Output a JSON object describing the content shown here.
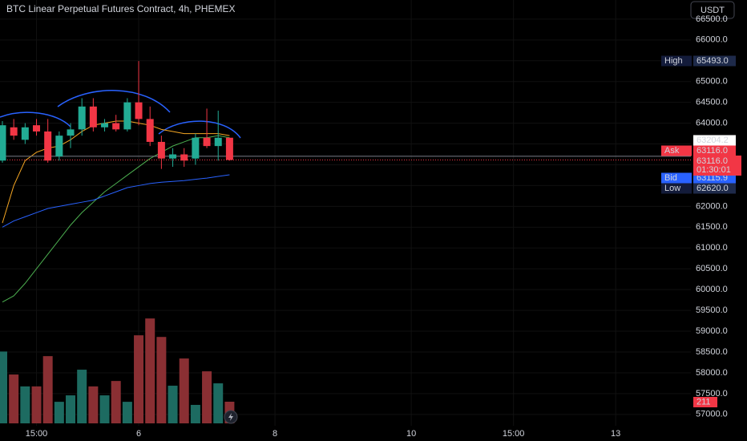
{
  "chart_data": {
    "type": "candlestick",
    "title": "BTC Linear Perpetual Futures Contract, 4h, PHEMEX",
    "currency_button": "USDT",
    "up_color": "#22ab94",
    "down_color": "#f23645",
    "open": [
      63100,
      63900,
      63600,
      63950,
      63800,
      63200,
      63700,
      63850,
      64400,
      63900,
      64000,
      63850,
      64500,
      64100,
      63550,
      63150,
      63250,
      63150,
      63650,
      63450,
      63650
    ],
    "high": [
      64050,
      64100,
      64000,
      64100,
      64100,
      63800,
      64000,
      64600,
      64600,
      64100,
      64200,
      64600,
      65493,
      64400,
      63700,
      63400,
      63400,
      63750,
      64350,
      64300,
      63650
    ],
    "low": [
      63050,
      63600,
      63500,
      63700,
      63050,
      63100,
      63400,
      63700,
      63800,
      63800,
      63800,
      63800,
      63950,
      63450,
      62900,
      62950,
      62950,
      63000,
      63400,
      63100,
      63100
    ],
    "close": [
      63950,
      63700,
      63900,
      63800,
      63100,
      63700,
      63850,
      64400,
      63900,
      64000,
      63850,
      64500,
      64100,
      63550,
      63150,
      63250,
      63100,
      63650,
      63450,
      63650,
      63116
    ],
    "volume": [
      700,
      476,
      360,
      360,
      655,
      210,
      273,
      523,
      360,
      273,
      413,
      210,
      858,
      1022,
      842,
      367,
      632,
      180,
      507,
      390,
      211
    ],
    "volume_label": "211",
    "moving_averages": [
      {
        "color": "#f5a623",
        "values": [
          61600,
          62500,
          63100,
          63300,
          63400,
          63450,
          63600,
          63800,
          63950,
          64000,
          64050,
          64050,
          64000,
          63950,
          63850,
          63800,
          63750,
          63750,
          63750,
          63750,
          63700
        ]
      },
      {
        "color": "#4caf50",
        "values": [
          59700,
          59850,
          60150,
          60500,
          60850,
          61200,
          61550,
          61850,
          62100,
          62350,
          62550,
          62750,
          62950,
          63150,
          63300,
          63450,
          63550,
          63650,
          63650,
          63700,
          63650
        ]
      },
      {
        "color": "#2962ff",
        "values": [
          61500,
          61650,
          61750,
          61850,
          61950,
          62000,
          62050,
          62100,
          62150,
          62250,
          62350,
          62450,
          62500,
          62550,
          62580,
          62600,
          62620,
          62650,
          62680,
          62720,
          62760
        ]
      }
    ],
    "ylim": [
      56650,
      66960
    ],
    "yticks": [
      {
        "value": 57000,
        "label": "57000.0"
      },
      {
        "value": 57500,
        "label": "57500.0"
      },
      {
        "value": 58000,
        "label": "58000.0"
      },
      {
        "value": 58500,
        "label": "58500.0"
      },
      {
        "value": 59000,
        "label": "59000.0"
      },
      {
        "value": 59500,
        "label": "59500.0"
      },
      {
        "value": 60000,
        "label": "60000.0"
      },
      {
        "value": 60500,
        "label": "60500.0"
      },
      {
        "value": 61000,
        "label": "61000.0"
      },
      {
        "value": 61500,
        "label": "61500.0"
      },
      {
        "value": 62000,
        "label": "62000.0"
      },
      {
        "value": 62500,
        "label": "62500.0"
      },
      {
        "value": 63000,
        "label": "63000.0"
      },
      {
        "value": 63500,
        "label": "63500.0"
      },
      {
        "value": 64000,
        "label": "64000.0"
      },
      {
        "value": 64500,
        "label": "64500.0"
      },
      {
        "value": 65000,
        "label": "65000.0"
      },
      {
        "value": 65500,
        "label": "65500.0"
      },
      {
        "value": 66000,
        "label": "66000.0"
      },
      {
        "value": 66500,
        "label": "66500.0"
      }
    ],
    "xticks": [
      {
        "value": 3,
        "label": "15:00"
      },
      {
        "value": 12,
        "label": "6"
      },
      {
        "value": 24,
        "label": "8"
      },
      {
        "value": 36,
        "label": "10"
      },
      {
        "value": 45,
        "label": "15:00"
      },
      {
        "value": 54,
        "label": "13"
      }
    ],
    "last_price": {
      "value": 63204.2,
      "label": "63204.2"
    },
    "current_price": {
      "value": 63116,
      "label": "63116.0",
      "countdown": "01:30:01"
    },
    "price_tags": [
      {
        "name": "High",
        "value": 65493,
        "label": "65493.0"
      },
      {
        "name": "Ask",
        "value": 63116,
        "label": "63116.0"
      },
      {
        "name": "Bid",
        "value": 63115.9,
        "label": "63115.9"
      },
      {
        "name": "Low",
        "value": 62620,
        "label": "62620.0"
      }
    ]
  }
}
